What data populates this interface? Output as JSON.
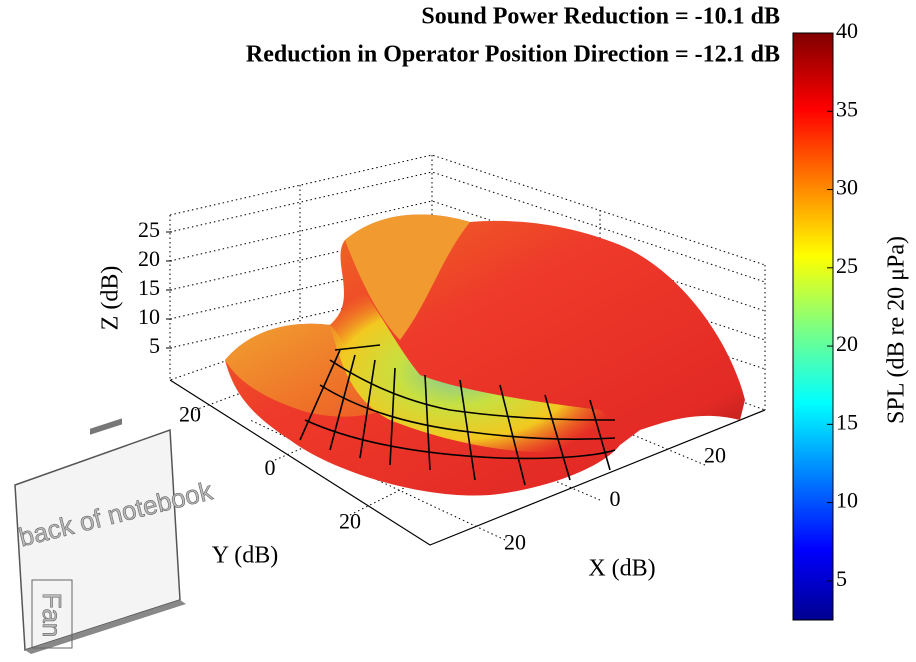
{
  "chart_data": {
    "type": "surface",
    "title": "Sound Power Reduction = -10.1 dB",
    "subtitle": "Reduction in Operator Position Direction = -12.1 dB",
    "x_label": "X (dB)",
    "y_label": "Y (dB)",
    "z_label": "Z (dB)",
    "xlim": [
      -30,
      30
    ],
    "xticks": [
      {
        "value": -20,
        "label": "20"
      },
      0,
      20
    ],
    "ylim": [
      -30,
      30
    ],
    "yticks": [
      {
        "value": -20,
        "label": "20"
      },
      0,
      20
    ],
    "zlim": [
      0,
      30
    ],
    "zticks": [
      5,
      10,
      15,
      20,
      25
    ],
    "colorbar": {
      "label": "SPL (dB re 20 μPa)",
      "colormap": "jet",
      "clim": [
        2.5,
        40
      ],
      "ticks": [
        5,
        10,
        15,
        20,
        25,
        30,
        35,
        40
      ]
    },
    "annotations": [
      "back of notebook",
      "Fan"
    ]
  }
}
